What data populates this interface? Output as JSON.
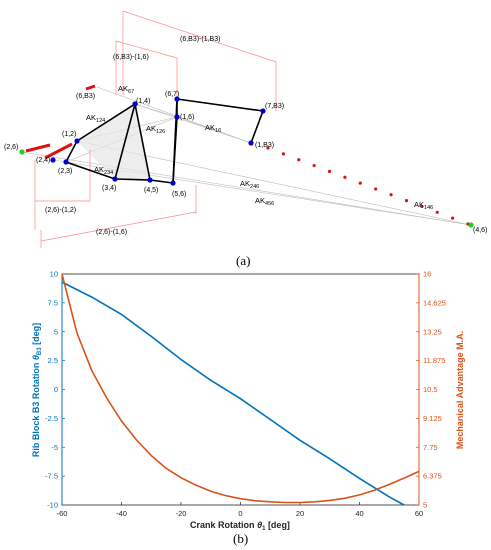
{
  "panel_a": {
    "label": "(a)",
    "nodes": [
      {
        "id": "n26",
        "label": "(2,6)"
      },
      {
        "id": "n24",
        "label": "(2,4)"
      },
      {
        "id": "n12",
        "label": "(1,2)"
      },
      {
        "id": "n23",
        "label": "(2,3)"
      },
      {
        "id": "n34",
        "label": "(3,4)"
      },
      {
        "id": "n45",
        "label": "(4,5)"
      },
      {
        "id": "n56",
        "label": "(5,6)"
      },
      {
        "id": "n14",
        "label": "(1,4)"
      },
      {
        "id": "n16",
        "label": "(1,6)"
      },
      {
        "id": "n67",
        "label": "(6,7)"
      },
      {
        "id": "n7B3",
        "label": "(7,B3)"
      },
      {
        "id": "n1B3",
        "label": "(1,B3)"
      },
      {
        "id": "n6B3",
        "label": "(6,B3)"
      },
      {
        "id": "n46",
        "label": "(4,6)"
      }
    ],
    "ak_labels": [
      {
        "id": "ak67",
        "base": "AK",
        "sub": "67"
      },
      {
        "id": "ak124",
        "base": "AK",
        "sub": "124"
      },
      {
        "id": "ak126",
        "base": "AK",
        "sub": "126"
      },
      {
        "id": "ak16",
        "base": "AK",
        "sub": "16"
      },
      {
        "id": "ak234",
        "base": "AK",
        "sub": "234"
      },
      {
        "id": "ak246",
        "base": "AK",
        "sub": "246"
      },
      {
        "id": "ak456",
        "base": "AK",
        "sub": "456"
      },
      {
        "id": "ak146",
        "base": "AK",
        "sub": "146"
      }
    ],
    "dimensions": [
      {
        "id": "dim1",
        "label": "(6,B3)-(1,B3)"
      },
      {
        "id": "dim2",
        "label": "(6,B3)-(1,6)"
      },
      {
        "id": "dim3",
        "label": "(2,6)-(1,2)"
      },
      {
        "id": "dim4",
        "label": "(2,6)-(1,6)"
      }
    ],
    "colors": {
      "node": "#0000cc",
      "ground": "#22cc22",
      "path": "#dd1111",
      "dim": "#ff8888",
      "link": "#000000",
      "aux": "#bbbbbb"
    }
  },
  "chart_data": {
    "type": "line",
    "panel_label": "(b)",
    "xlabel_base": "Crank Rotation ",
    "xlabel_theta": "θ",
    "xlabel_sub": "1",
    "xlabel_unit": " [deg]",
    "ylabel_left_base": "Rib Block B3 Rotation ",
    "ylabel_left_theta": "θ",
    "ylabel_left_sub": "B3",
    "ylabel_left_unit": " [deg]",
    "ylabel_right": "Mechanical Advantage M.A.",
    "xlim": [
      -60,
      60
    ],
    "ylim_left": [
      -10,
      10
    ],
    "ylim_right": [
      5,
      16
    ],
    "xticks": [
      "-60",
      "-40",
      "-20",
      "0",
      "20",
      "40",
      "60"
    ],
    "yticks_left": [
      "10",
      "7.5",
      "5",
      "2.5",
      "0",
      "-2.5",
      "-5",
      "-7.5",
      "-10"
    ],
    "yticks_right": [
      "16",
      "14.625",
      "13.25",
      "11.875",
      "10.5",
      "9.125",
      "7.75",
      "6.375",
      "5"
    ],
    "colors": {
      "left": "#0072BD",
      "right": "#D95319"
    },
    "series": [
      {
        "axis": "left",
        "x": [
          -60,
          -50,
          -40,
          -30,
          -20,
          -10,
          0,
          10,
          20,
          30,
          40,
          50,
          55
        ],
        "y": [
          9.3,
          8.0,
          6.5,
          4.6,
          2.6,
          0.8,
          -0.8,
          -2.6,
          -4.4,
          -6.0,
          -7.7,
          -9.3,
          -10
        ]
      },
      {
        "axis": "right",
        "x": [
          -60,
          -55,
          -50,
          -45,
          -40,
          -35,
          -30,
          -25,
          -20,
          -15,
          -10,
          -5,
          0,
          5,
          10,
          15,
          20,
          25,
          30,
          35,
          40,
          45,
          50,
          55,
          60
        ],
        "y": [
          16,
          13.2,
          11.4,
          10.1,
          9.0,
          8.1,
          7.35,
          6.75,
          6.3,
          5.95,
          5.65,
          5.45,
          5.3,
          5.2,
          5.15,
          5.12,
          5.12,
          5.15,
          5.22,
          5.32,
          5.48,
          5.7,
          5.98,
          6.28,
          6.6
        ]
      }
    ]
  }
}
